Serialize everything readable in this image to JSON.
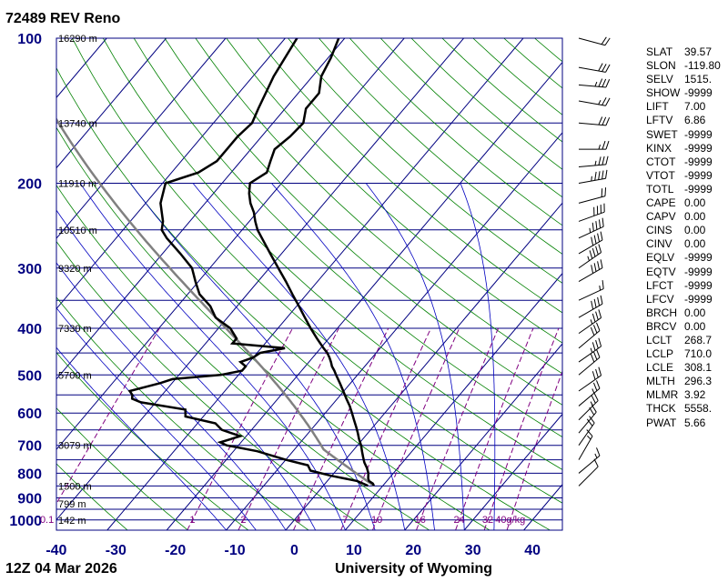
{
  "header": {
    "title": "72489 REV Reno"
  },
  "footer": {
    "time": "12Z 04 Mar 2026",
    "source": "University of Wyoming"
  },
  "colors": {
    "isobar": "#000080",
    "isotherm": "#000080",
    "dry_adiabat": "#008000",
    "moist_adiabat": "#0000c0",
    "mixing_ratio": "#800080",
    "trace": "#000000",
    "parcel": "#808080",
    "axis_label": "#000080"
  },
  "chart_data": {
    "type": "skew-t log-p",
    "xlabel": "",
    "ylabel": "",
    "x_ticks": [
      "-40",
      "-30",
      "-20",
      "-10",
      "0",
      "10",
      "20",
      "30",
      "40"
    ],
    "x_tick_values": [
      -40,
      -30,
      -20,
      -10,
      0,
      10,
      20,
      30,
      40
    ],
    "pressure_ticks": [
      "100",
      "200",
      "300",
      "400",
      "500",
      "600",
      "700",
      "800",
      "900",
      "1000"
    ],
    "pressure_tick_values": [
      100,
      200,
      300,
      400,
      500,
      600,
      700,
      800,
      900,
      1000
    ],
    "xlim": [
      -40,
      45
    ],
    "plim": [
      1050,
      100
    ],
    "height_labels": [
      {
        "p": 100,
        "label": "16290 m"
      },
      {
        "p": 150,
        "label": "13740 m"
      },
      {
        "p": 200,
        "label": "11910 m"
      },
      {
        "p": 250,
        "label": "10510 m"
      },
      {
        "p": 300,
        "label": "9320 m"
      },
      {
        "p": 400,
        "label": "7330 m"
      },
      {
        "p": 500,
        "label": "5700 m"
      },
      {
        "p": 700,
        "label": "3079 m"
      },
      {
        "p": 850,
        "label": "1500 m"
      },
      {
        "p": 925,
        "label": "799 m"
      },
      {
        "p": 1000,
        "label": "142 m"
      }
    ],
    "mixing_ratio_labels": [
      "0.1",
      "1",
      "2",
      "4",
      "7",
      "10",
      "16",
      "24",
      "32",
      "40g/kg"
    ],
    "mixing_ratio_values": [
      0.1,
      1,
      2,
      4,
      7,
      10,
      16,
      24,
      32,
      40
    ],
    "temperature": {
      "p": [
        849,
        840,
        830,
        820,
        800,
        780,
        760,
        740,
        720,
        700,
        680,
        660,
        640,
        620,
        600,
        580,
        560,
        540,
        520,
        500,
        490,
        480,
        470,
        460,
        450,
        440,
        420,
        400,
        380,
        360,
        340,
        320,
        300,
        280,
        260,
        250,
        240,
        230,
        220,
        210,
        200,
        190,
        180,
        170,
        160,
        150,
        140,
        130,
        120,
        110,
        100
      ],
      "t": [
        8.5,
        8.0,
        7.0,
        6.5,
        5.8,
        4.8,
        3.6,
        2.6,
        1.6,
        0.6,
        -0.6,
        -1.7,
        -2.9,
        -4.2,
        -5.5,
        -6.9,
        -8.5,
        -10.1,
        -11.8,
        -13.6,
        -14.5,
        -15.5,
        -16.3,
        -17.2,
        -18.2,
        -19.5,
        -22.0,
        -24.5,
        -27.0,
        -29.6,
        -32.4,
        -35.3,
        -38.5,
        -41.9,
        -45.5,
        -47.4,
        -49.0,
        -50.5,
        -52.4,
        -54.0,
        -55.3,
        -54.0,
        -55.0,
        -56.0,
        -55.2,
        -54.9,
        -56.5,
        -56.5,
        -58.5,
        -59.5,
        -61.0
      ]
    },
    "dewpoint": {
      "p": [
        849,
        830,
        810,
        790,
        770,
        750,
        720,
        700,
        690,
        670,
        650,
        630,
        610,
        590,
        570,
        560,
        550,
        540,
        520,
        510,
        500,
        490,
        480,
        470,
        460,
        450,
        440,
        430,
        420,
        400,
        380,
        360,
        340,
        320,
        300,
        280,
        260,
        250,
        240,
        220,
        200,
        190,
        180,
        160,
        150,
        140,
        120,
        100
      ],
      "td": [
        7.5,
        5.0,
        0.0,
        -4.3,
        -5.5,
        -10.0,
        -16.0,
        -22.0,
        -23.5,
        -21.0,
        -25.0,
        -27.0,
        -33.0,
        -34.0,
        -42.5,
        -44.5,
        -45.0,
        -46.0,
        -42.0,
        -40.5,
        -33.0,
        -30.0,
        -30.0,
        -31.5,
        -30.0,
        -29.5,
        -26.0,
        -35.5,
        -35.5,
        -38.0,
        -42.0,
        -44.5,
        -48.0,
        -50.5,
        -53.0,
        -57.0,
        -61.5,
        -63.5,
        -64.5,
        -67.5,
        -69.5,
        -65.5,
        -64.0,
        -64.0,
        -63.5,
        -64.5,
        -66.5,
        -68.0
      ]
    },
    "parcel": {
      "p": [
        1000,
        900,
        849,
        800,
        700,
        600,
        500,
        400,
        300,
        250,
        200,
        150,
        100
      ]
    },
    "indices": [
      {
        "name": "SLAT",
        "value": "39.57"
      },
      {
        "name": "SLON",
        "value": "-119.80"
      },
      {
        "name": "SELV",
        "value": "1515."
      },
      {
        "name": "SHOW",
        "value": "-9999"
      },
      {
        "name": "LIFT",
        "value": "7.00"
      },
      {
        "name": "LFTV",
        "value": "6.86"
      },
      {
        "name": "SWET",
        "value": "-9999"
      },
      {
        "name": "KINX",
        "value": "-9999"
      },
      {
        "name": "CTOT",
        "value": "-9999"
      },
      {
        "name": "VTOT",
        "value": "-9999"
      },
      {
        "name": "TOTL",
        "value": "-9999"
      },
      {
        "name": "CAPE",
        "value": "0.00"
      },
      {
        "name": "CAPV",
        "value": "0.00"
      },
      {
        "name": "CINS",
        "value": "0.00"
      },
      {
        "name": "CINV",
        "value": "0.00"
      },
      {
        "name": "EQLV",
        "value": "-9999"
      },
      {
        "name": "EQTV",
        "value": "-9999"
      },
      {
        "name": "LFCT",
        "value": "-9999"
      },
      {
        "name": "LFCV",
        "value": "-9999"
      },
      {
        "name": "BRCH",
        "value": "0.00"
      },
      {
        "name": "BRCV",
        "value": "0.00"
      },
      {
        "name": "LCLT",
        "value": "268.7"
      },
      {
        "name": "LCLP",
        "value": "710.0"
      },
      {
        "name": "LCLE",
        "value": "308.1"
      },
      {
        "name": "MLTH",
        "value": "296.3"
      },
      {
        "name": "MLMR",
        "value": "3.92"
      },
      {
        "name": "THCK",
        "value": "5558."
      },
      {
        "name": "PWAT",
        "value": "5.66"
      }
    ],
    "winds": [
      {
        "p": 100,
        "dir": 285,
        "spd": 20
      },
      {
        "p": 115,
        "dir": 280,
        "spd": 30
      },
      {
        "p": 125,
        "dir": 275,
        "spd": 35
      },
      {
        "p": 135,
        "dir": 280,
        "spd": 25
      },
      {
        "p": 150,
        "dir": 275,
        "spd": 30
      },
      {
        "p": 170,
        "dir": 270,
        "spd": 25
      },
      {
        "p": 185,
        "dir": 265,
        "spd": 35
      },
      {
        "p": 200,
        "dir": 260,
        "spd": 45
      },
      {
        "p": 220,
        "dir": 255,
        "spd": 20
      },
      {
        "p": 240,
        "dir": 250,
        "spd": 40
      },
      {
        "p": 260,
        "dir": 245,
        "spd": 45
      },
      {
        "p": 280,
        "dir": 240,
        "spd": 40
      },
      {
        "p": 300,
        "dir": 235,
        "spd": 45
      },
      {
        "p": 320,
        "dir": 240,
        "spd": 40
      },
      {
        "p": 350,
        "dir": 245,
        "spd": 15
      },
      {
        "p": 380,
        "dir": 240,
        "spd": 40
      },
      {
        "p": 410,
        "dir": 235,
        "spd": 35
      },
      {
        "p": 440,
        "dir": 230,
        "spd": 30
      },
      {
        "p": 470,
        "dir": 235,
        "spd": 35
      },
      {
        "p": 500,
        "dir": 230,
        "spd": 30
      },
      {
        "p": 540,
        "dir": 235,
        "spd": 30
      },
      {
        "p": 580,
        "dir": 230,
        "spd": 25
      },
      {
        "p": 620,
        "dir": 225,
        "spd": 25
      },
      {
        "p": 660,
        "dir": 220,
        "spd": 20
      },
      {
        "p": 700,
        "dir": 215,
        "spd": 20
      },
      {
        "p": 750,
        "dir": 210,
        "spd": 15
      },
      {
        "p": 800,
        "dir": 230,
        "spd": 15
      },
      {
        "p": 850,
        "dir": 225,
        "spd": 10
      }
    ]
  }
}
